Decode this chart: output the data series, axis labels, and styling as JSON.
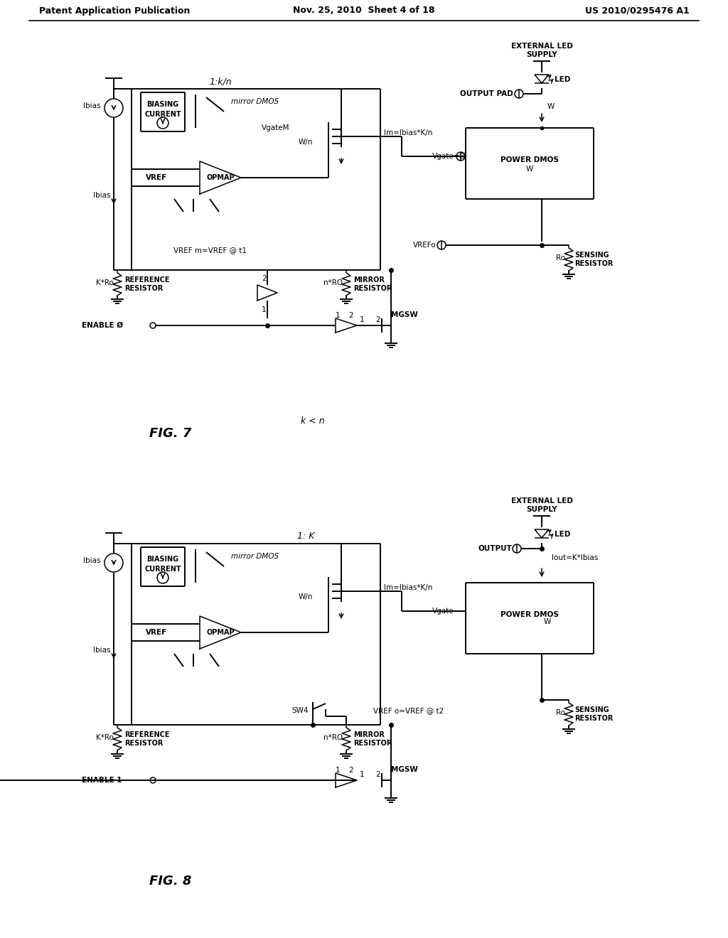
{
  "header_left": "Patent Application Publication",
  "header_mid": "Nov. 25, 2010  Sheet 4 of 18",
  "header_right": "US 2010/0295476 A1",
  "bg_color": "#ffffff",
  "line_color": "#000000",
  "lw": 1.4,
  "lw_thin": 1.1,
  "fs_hdr": 9.0,
  "fs_lbl": 8.0,
  "fs_sm": 7.5,
  "fs_fig": 13.0,
  "fig7_label": "FIG. 7",
  "fig8_label": "FIG. 8",
  "fig7_k_less_n": "k < n",
  "fig7_ratio": "1:k/n",
  "fig8_ratio": "1: K"
}
